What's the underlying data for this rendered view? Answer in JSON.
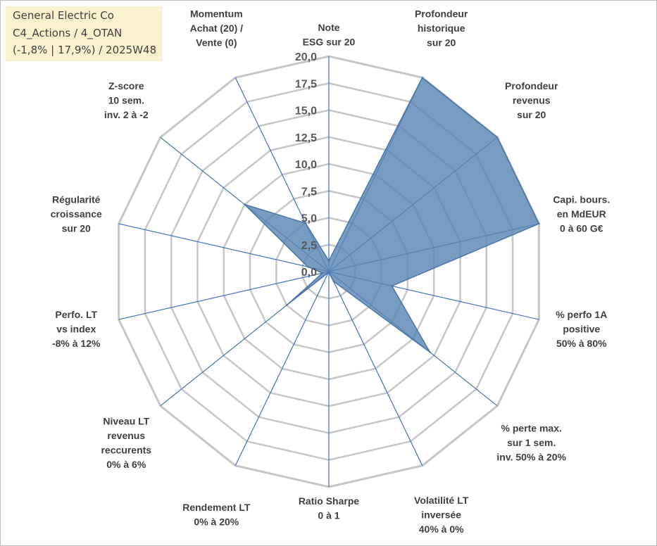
{
  "info": {
    "line1": "General Electric Co",
    "line2": "C4_Actions / 4_OTAN",
    "line3": "(-1,8% | 17,9%) / 2025W48"
  },
  "chart_data": {
    "type": "radar",
    "title": "",
    "rmin": 0,
    "rmax": 20,
    "ticks": [
      "0,0",
      "2,5",
      "5,0",
      "7,5",
      "10,0",
      "12,5",
      "15,0",
      "17,5",
      "20,0"
    ],
    "axes": [
      [
        "Note",
        "ESG sur 20"
      ],
      [
        "Profondeur",
        "historique",
        "sur 20"
      ],
      [
        "Profondeur",
        "revenus",
        "sur 20"
      ],
      [
        "Capi. bours.",
        "en MdEUR",
        "0 à 60 G€"
      ],
      [
        "% perfo 1A",
        "positive",
        "50% à 80%"
      ],
      [
        "% perte max.",
        "sur 1 sem.",
        "inv. 50% à 20%"
      ],
      [
        "Volatilité LT",
        "inversée",
        "40% à 0%"
      ],
      [
        "Ratio Sharpe",
        "0 à 1"
      ],
      [
        "Rendement LT",
        "0% à 20%"
      ],
      [
        "Niveau LT",
        "revenus",
        "reccurents",
        "0% à 6%"
      ],
      [
        "Perfo. LT",
        "vs index",
        "-8% à 12%"
      ],
      [
        "Régularité",
        "croissance",
        "sur 20"
      ],
      [
        "Z-score",
        "10 sem.",
        "inv. 2 à -2"
      ],
      [
        "Momentum",
        "Achat (20) /",
        "Vente (0)"
      ]
    ],
    "series": [
      {
        "values": [
          1.0,
          20.0,
          20.0,
          20.0,
          6.0,
          12.0,
          1.0,
          0.1,
          0.1,
          5.0,
          0.6,
          2.0,
          10.0,
          5.0
        ],
        "color": "#4a76a8"
      }
    ],
    "colors": {
      "fill": "#5a86b5",
      "stroke": "#4a76a8",
      "grid": "#c6c6c6",
      "spoke": "#4472c4",
      "info_bg": "#fdf0cf"
    }
  }
}
